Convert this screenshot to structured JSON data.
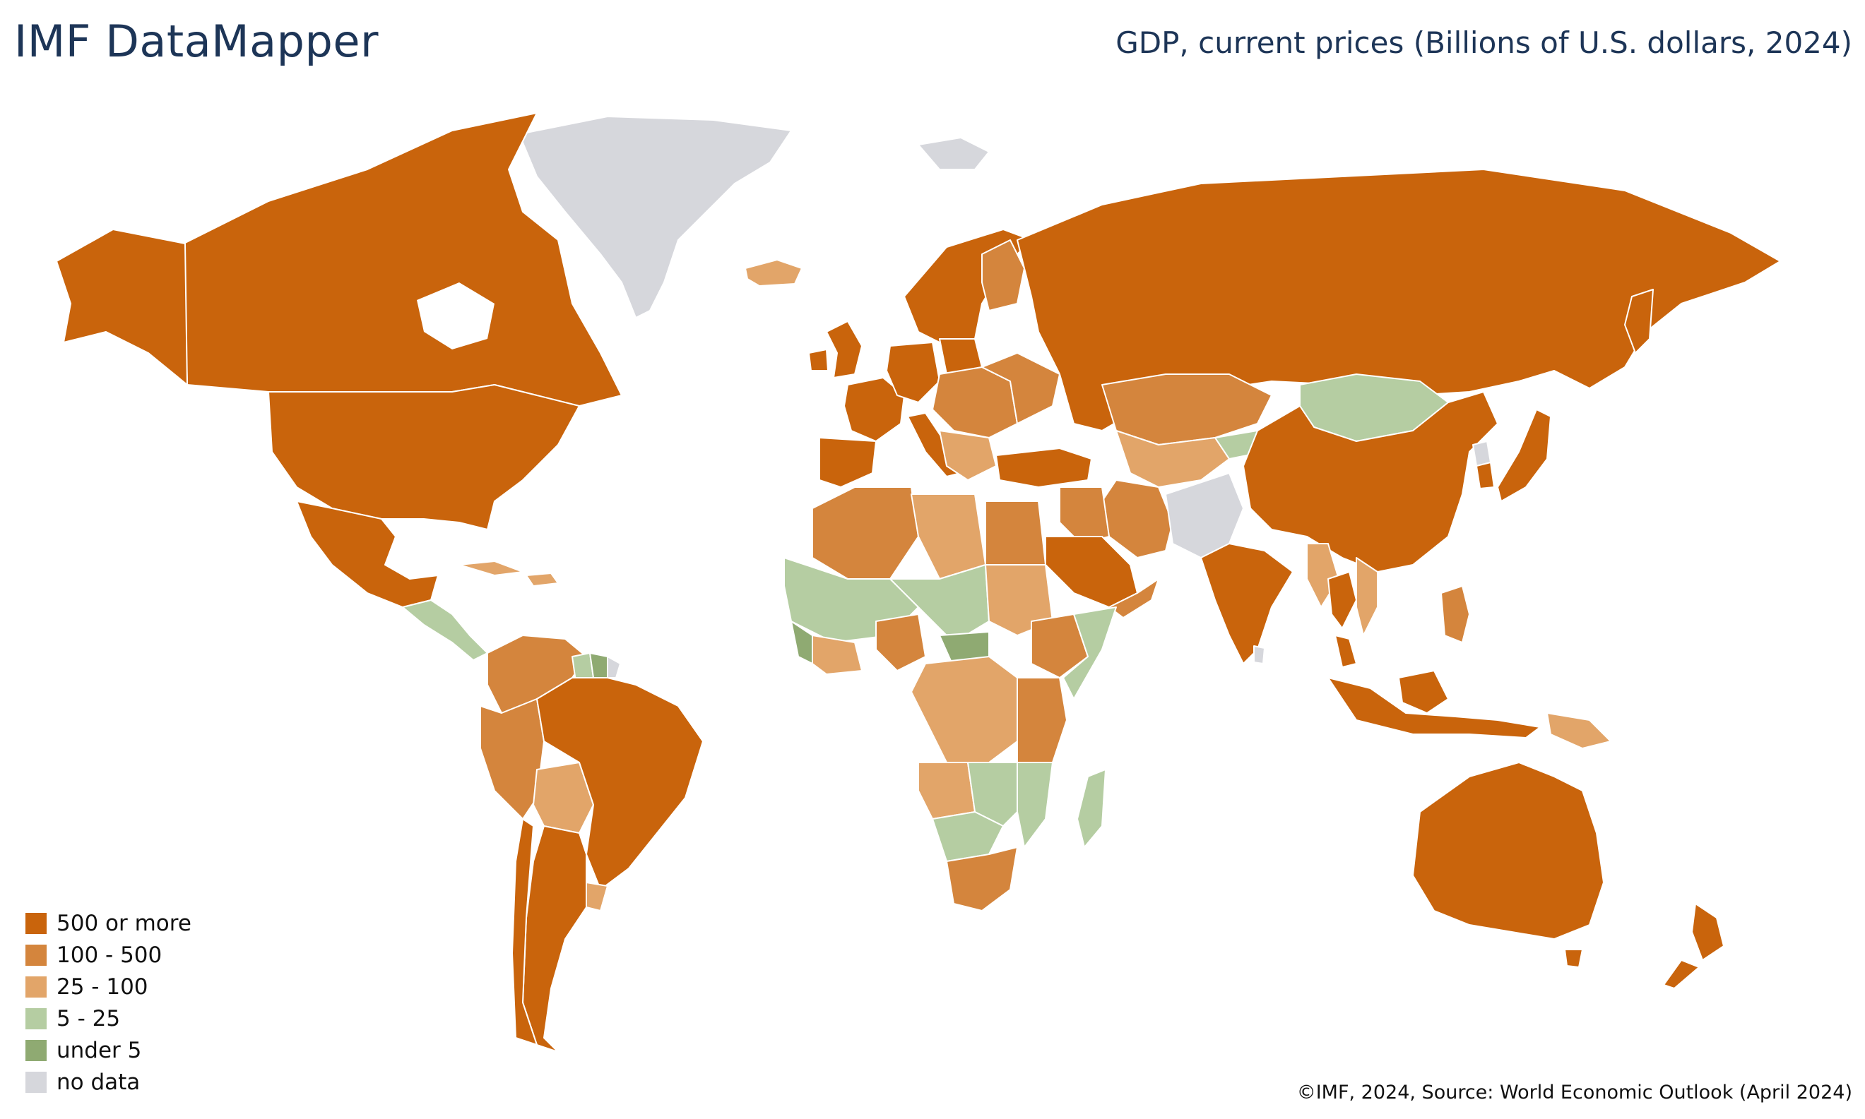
{
  "header": {
    "title": "IMF DataMapper",
    "subtitle": "GDP, current prices (Billions of U.S. dollars, 2024)"
  },
  "legend": [
    {
      "key": "c500",
      "label": "500 or more",
      "color": "#c9640c"
    },
    {
      "key": "c100",
      "label": "100 - 500",
      "color": "#d4853d"
    },
    {
      "key": "c25",
      "label": "25 - 100",
      "color": "#e2a569"
    },
    {
      "key": "c5",
      "label": "5 - 25",
      "color": "#b5cda2"
    },
    {
      "key": "cu5",
      "label": "under 5",
      "color": "#8faa72"
    },
    {
      "key": "nd",
      "label": "no data",
      "color": "#d6d7dc"
    }
  ],
  "footer": {
    "credit": "©IMF, 2024, Source: World Economic Outlook (April 2024)"
  }
}
